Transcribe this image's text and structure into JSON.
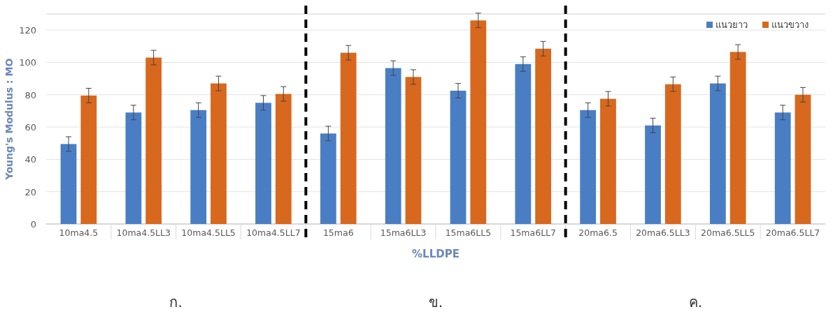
{
  "chart_data": {
    "type": "bar",
    "xlabel": "%LLDPE",
    "ylabel": "Young's Modulus : MO",
    "categories": [
      "10ma4.5",
      "10ma4.5LL3",
      "10ma4.5LL5",
      "10ma4.5LL7",
      "15ma6",
      "15ma6LL3",
      "15ma6LL5",
      "15ma6LL7",
      "20ma6.5",
      "20ma6.5LL3",
      "20ma6.5LL5",
      "20ma6.5LL7"
    ],
    "series": [
      {
        "name": "แนวยาว",
        "color": "#4a7ec4",
        "values": [
          49.5,
          69,
          70.5,
          75,
          56,
          96.5,
          82.5,
          99,
          70.5,
          61,
          87,
          69
        ],
        "errors": [
          4.5,
          4.5,
          4.5,
          4.5,
          4.5,
          4.5,
          4.5,
          4.5,
          4.5,
          4.5,
          4.5,
          4.5
        ]
      },
      {
        "name": "แนวขวาง",
        "color": "#d7681e",
        "values": [
          79.5,
          103,
          87,
          80.5,
          106,
          91,
          126,
          108.5,
          77.5,
          86.5,
          106.5,
          80
        ],
        "errors": [
          4.5,
          4.5,
          4.5,
          4.5,
          4.5,
          4.5,
          4.5,
          4.5,
          4.5,
          4.5,
          4.5,
          4.5
        ]
      }
    ],
    "ylim": [
      0,
      130
    ],
    "yticks": [
      0,
      20,
      40,
      60,
      80,
      100,
      120
    ],
    "grid": "y",
    "legend": "top right",
    "annotations": [
      "ก.",
      "ข.",
      "ค."
    ]
  }
}
